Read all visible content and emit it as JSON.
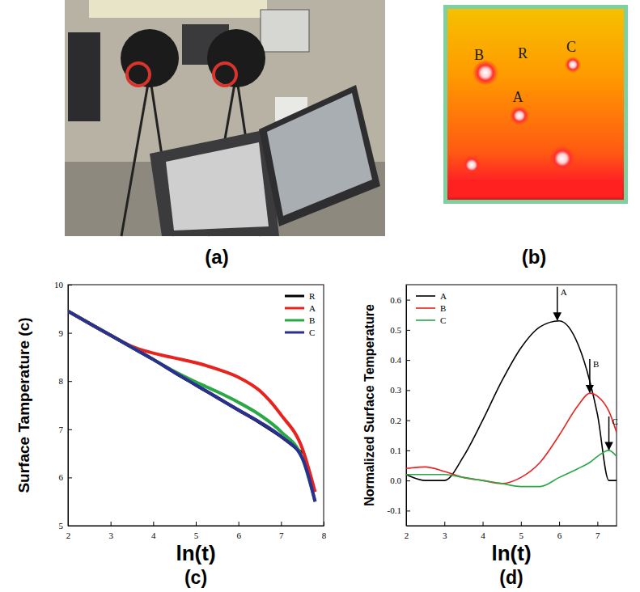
{
  "figure": {
    "photo": {
      "label": "(a)"
    },
    "thermal": {
      "label": "(b)",
      "markers": [
        "B",
        "R",
        "C",
        "A"
      ]
    }
  },
  "chart_data": [
    {
      "type": "line",
      "panel_label": "(c)",
      "x_label": "ln(t)",
      "y_label": "Surface Tamperature (c)",
      "x": [
        2,
        2.5,
        3,
        3.5,
        4,
        4.5,
        5,
        5.5,
        6,
        6.5,
        7,
        7.5,
        7.8
      ],
      "xlim": [
        2,
        8
      ],
      "xticks": [
        2,
        3,
        4,
        5,
        6,
        7,
        8
      ],
      "ylim": [
        5,
        10
      ],
      "yticks": [
        5,
        6,
        7,
        8,
        9,
        10
      ],
      "grid": false,
      "legend": "upper right",
      "series": [
        {
          "name": "R",
          "color": "#000000",
          "values": [
            9.45,
            9.2,
            8.95,
            8.7,
            8.45,
            8.18,
            7.92,
            7.66,
            7.4,
            7.14,
            6.85,
            6.5,
            null
          ]
        },
        {
          "name": "A",
          "color": "#e8231f",
          "values": [
            9.45,
            9.2,
            8.95,
            8.72,
            8.58,
            8.48,
            8.38,
            8.25,
            8.08,
            7.8,
            7.3,
            6.6,
            5.7
          ]
        },
        {
          "name": "B",
          "color": "#2aa845",
          "values": [
            9.45,
            9.2,
            8.95,
            8.7,
            8.45,
            8.2,
            7.98,
            7.78,
            7.56,
            7.3,
            6.95,
            6.4,
            5.5
          ]
        },
        {
          "name": "C",
          "color": "#2b2f8f",
          "values": [
            9.45,
            9.2,
            8.95,
            8.7,
            8.45,
            8.18,
            7.92,
            7.66,
            7.4,
            7.15,
            6.85,
            6.4,
            5.5
          ]
        }
      ]
    },
    {
      "type": "line",
      "panel_label": "(d)",
      "x_label": "ln(t)",
      "y_label": "Normalized Surface Temperature",
      "x": [
        2,
        2.5,
        3,
        3.5,
        4,
        4.5,
        5,
        5.5,
        6,
        6.5,
        6.8,
        7,
        7.3,
        7.5
      ],
      "xlim": [
        2,
        7.5
      ],
      "xticks": [
        2,
        3,
        4,
        5,
        6,
        7
      ],
      "ylim": [
        -0.15,
        0.65
      ],
      "yticks": [
        -0.1,
        {
          "value": 0,
          "label": "0.0"
        },
        0.1,
        0.2,
        0.3,
        0.4,
        0.5,
        0.6
      ],
      "grid": false,
      "legend": "upper left",
      "series": [
        {
          "name": "A",
          "color": "#000000",
          "values": [
            0.02,
            0.0,
            0.0,
            0.08,
            0.2,
            0.33,
            0.44,
            0.51,
            0.53,
            0.45,
            0.33,
            0.22,
            0.0,
            0.0
          ]
        },
        {
          "name": "B",
          "color": "#e8231f",
          "values": [
            0.04,
            0.045,
            0.03,
            0.01,
            0.0,
            -0.01,
            0.01,
            0.06,
            0.15,
            0.25,
            0.29,
            0.28,
            0.23,
            0.16
          ]
        },
        {
          "name": "C",
          "color": "#2aa845",
          "values": [
            0.02,
            0.02,
            0.02,
            0.01,
            0.0,
            -0.01,
            -0.02,
            -0.02,
            0.01,
            0.04,
            0.06,
            0.08,
            0.1,
            0.08
          ]
        }
      ],
      "annotations": [
        {
          "text": "A",
          "x": 5.95,
          "y": 0.53
        },
        {
          "text": "B",
          "x": 6.8,
          "y": 0.29
        },
        {
          "text": "C",
          "x": 7.3,
          "y": 0.1
        }
      ]
    }
  ]
}
